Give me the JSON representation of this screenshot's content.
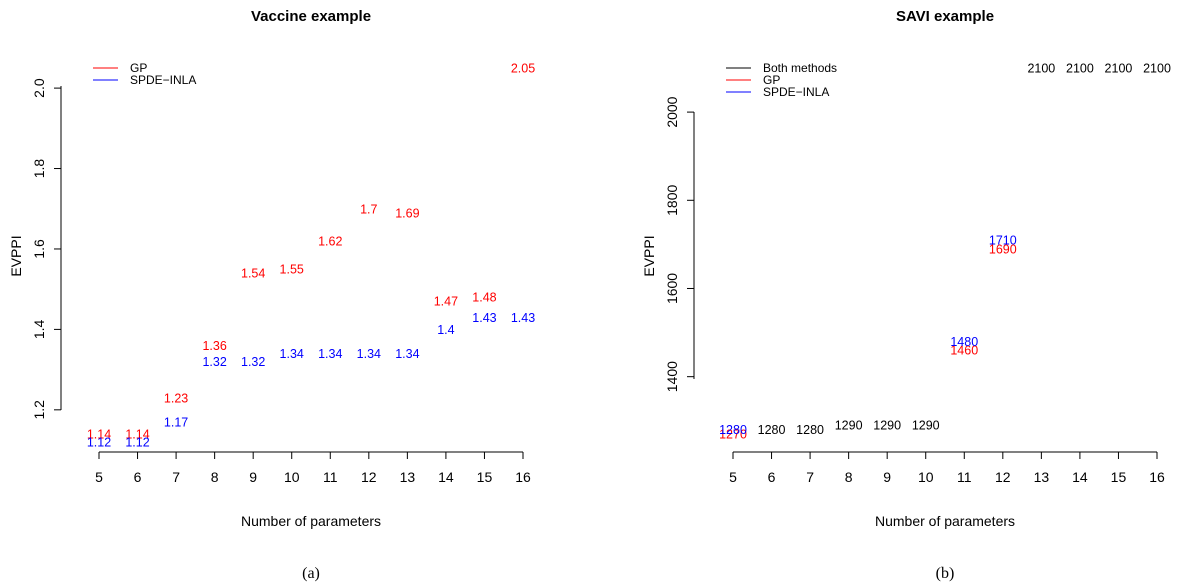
{
  "captions": [
    "(a)",
    "(b)"
  ],
  "chart_data": [
    {
      "type": "scatter",
      "title": "Vaccine example",
      "xlabel": "Number of parameters",
      "ylabel": "EVPPI",
      "x_ticks": [
        5,
        6,
        7,
        8,
        9,
        10,
        11,
        12,
        13,
        14,
        15,
        16
      ],
      "y_ticks": [
        1.2,
        1.4,
        1.6,
        1.8,
        2.0
      ],
      "y_tick_labels": [
        "1.2",
        "1.4",
        "1.6",
        "1.8",
        "2.0"
      ],
      "xlim": [
        5,
        16
      ],
      "ylim": [
        1.12,
        2.05
      ],
      "legend_position": "top-left",
      "series": [
        {
          "name": "GP",
          "color": "#ff0000",
          "x": [
            5,
            6,
            7,
            8,
            9,
            10,
            11,
            12,
            13,
            14,
            15,
            16
          ],
          "values": [
            1.14,
            1.14,
            1.23,
            1.36,
            1.54,
            1.55,
            1.62,
            1.7,
            1.69,
            1.47,
            1.48,
            2.05
          ],
          "labels": [
            "1.14",
            "1.14",
            "1.23",
            "1.36",
            "1.54",
            "1.55",
            "1.62",
            "1.7",
            "1.69",
            "1.47",
            "1.48",
            "2.05"
          ]
        },
        {
          "name": "SPDE−INLA",
          "color": "#0000ff",
          "x": [
            5,
            6,
            7,
            8,
            9,
            10,
            11,
            12,
            13,
            14,
            15,
            16
          ],
          "values": [
            1.12,
            1.12,
            1.17,
            1.32,
            1.32,
            1.34,
            1.34,
            1.34,
            1.34,
            1.4,
            1.43,
            1.43
          ],
          "labels": [
            "1.12",
            "1.12",
            "1.17",
            "1.32",
            "1.32",
            "1.34",
            "1.34",
            "1.34",
            "1.34",
            "1.4",
            "1.43",
            "1.43"
          ]
        }
      ]
    },
    {
      "type": "scatter",
      "title": "SAVI example",
      "xlabel": "Number of parameters",
      "ylabel": "EVPPI",
      "x_ticks": [
        5,
        6,
        7,
        8,
        9,
        10,
        11,
        12,
        13,
        14,
        15,
        16
      ],
      "y_ticks": [
        1400,
        1600,
        1800,
        2000
      ],
      "y_tick_labels": [
        "1400",
        "1600",
        "1800",
        "2000"
      ],
      "xlim": [
        5,
        16
      ],
      "ylim": [
        1270,
        2100
      ],
      "legend_position": "top-left",
      "series": [
        {
          "name": "Both methods",
          "color": "#000000",
          "x": [
            6,
            7,
            8,
            9,
            10,
            13,
            14,
            15,
            16
          ],
          "values": [
            1280,
            1280,
            1290,
            1290,
            1290,
            2100,
            2100,
            2100,
            2100
          ],
          "labels": [
            "1280",
            "1280",
            "1290",
            "1290",
            "1290",
            "2100",
            "2100",
            "2100",
            "2100"
          ]
        },
        {
          "name": "GP",
          "color": "#ff0000",
          "x": [
            5,
            11,
            12
          ],
          "values": [
            1270,
            1460,
            1690
          ],
          "labels": [
            "1270",
            "1460",
            "1690"
          ]
        },
        {
          "name": "SPDE−INLA",
          "color": "#0000ff",
          "x": [
            5,
            11,
            12
          ],
          "values": [
            1280,
            1480,
            1710
          ],
          "labels": [
            "1280",
            "1480",
            "1710"
          ]
        }
      ]
    }
  ]
}
